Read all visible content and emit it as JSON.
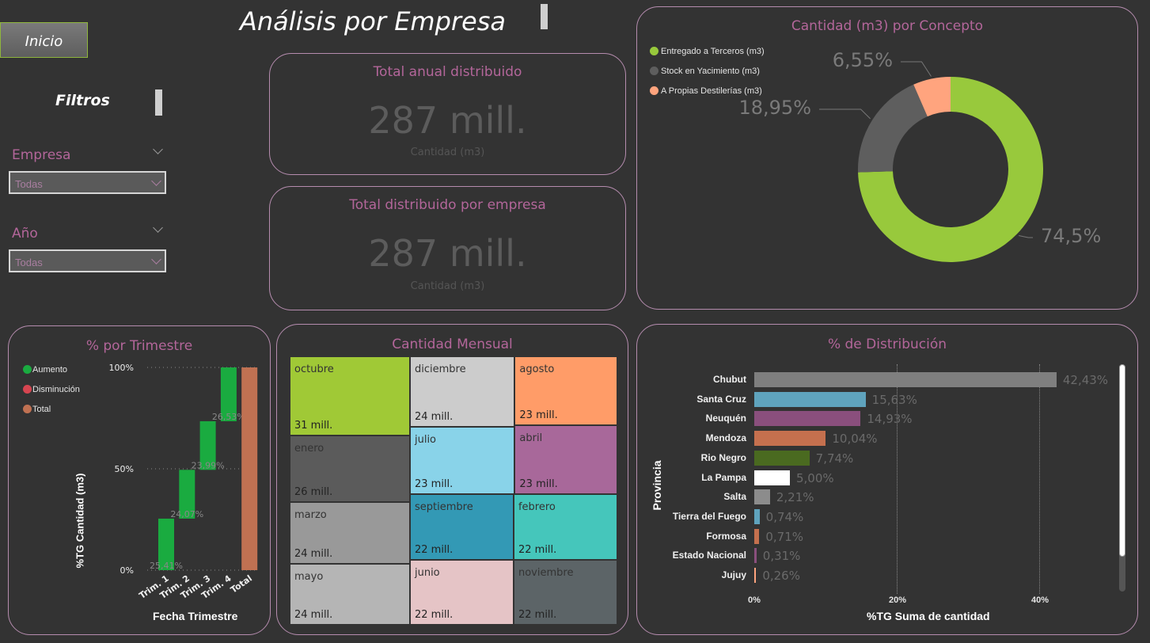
{
  "header": {
    "title": "Análisis por Empresa",
    "inicio_label": "Inicio",
    "filters_label": "Filtros"
  },
  "filters": {
    "empresa": {
      "label": "Empresa",
      "value": "Todas"
    },
    "anio": {
      "label": "Año",
      "value": "Todas"
    }
  },
  "cards": {
    "total_anual": {
      "title": "Total anual distribuido",
      "value": "287 mill.",
      "sub": "Cantidad (m3)"
    },
    "total_empresa": {
      "title": "Total distribuido por empresa",
      "value": "287 mill.",
      "sub": "Cantidad (m3)"
    }
  },
  "donut_panel": {
    "title": "Cantidad (m3) por Concepto"
  },
  "trimestre_panel": {
    "title": "% por Trimestre",
    "ylabel": "%TG Cantidad (m3)",
    "xlabel": "Fecha Trimestre"
  },
  "mensual_panel": {
    "title": "Cantidad Mensual"
  },
  "distrib_panel": {
    "title": "% de Distribución",
    "ylabel": "Provincia",
    "xlabel": "%TG Suma de cantidad"
  },
  "chart_data": [
    {
      "type": "pie",
      "title": "Cantidad (m3) por Concepto",
      "categories": [
        "Entregado a Terceros (m3)",
        "Stock en Yacimiento (m3)",
        "A Propias Destilerías (m3)"
      ],
      "values": [
        74.5,
        18.95,
        6.55
      ],
      "labels": [
        "74,5%",
        "18,95%",
        "6,55%"
      ],
      "colors": [
        "#98c93c",
        "#5e5e5e",
        "#ffa47e"
      ],
      "legend": "top-left"
    },
    {
      "type": "bar",
      "subtype": "waterfall",
      "title": "% por Trimestre",
      "categories": [
        "Trim. 1",
        "Trim. 2",
        "Trim. 3",
        "Trim. 4",
        "Total"
      ],
      "values": [
        25.41,
        24.07,
        23.99,
        26.53,
        100
      ],
      "labels": [
        "25,41%",
        "24,07%",
        "23,99%",
        "26,53%",
        ""
      ],
      "legend_entries": [
        "Aumento",
        "Disminución",
        "Total"
      ],
      "legend_colors": [
        "#1aab40",
        "#d64550",
        "#c07152"
      ],
      "yticks": [
        "0%",
        "50%",
        "100%"
      ],
      "ylim": [
        0,
        100
      ]
    },
    {
      "type": "heatmap",
      "subtype": "treemap",
      "title": "Cantidad Mensual",
      "items": [
        {
          "name": "octubre",
          "label": "31 mill.",
          "value": 31,
          "color": "#a0c936"
        },
        {
          "name": "enero",
          "label": "26 mill.",
          "value": 26,
          "color": "#5b5b5b"
        },
        {
          "name": "marzo",
          "label": "24 mill.",
          "value": 24,
          "color": "#999999"
        },
        {
          "name": "mayo",
          "label": "24 mill.",
          "value": 24,
          "color": "#b5b5b5"
        },
        {
          "name": "diciembre",
          "label": "24 mill.",
          "value": 24,
          "color": "#cccccc"
        },
        {
          "name": "julio",
          "label": "23 mill.",
          "value": 23,
          "color": "#89d3e9"
        },
        {
          "name": "agosto",
          "label": "23 mill.",
          "value": 23,
          "color": "#ff9c68"
        },
        {
          "name": "abril",
          "label": "23 mill.",
          "value": 23,
          "color": "#a8689a"
        },
        {
          "name": "septiembre",
          "label": "22 mill.",
          "value": 22,
          "color": "#3399b5"
        },
        {
          "name": "junio",
          "label": "22 mill.",
          "value": 22,
          "color": "#e5c4c6"
        },
        {
          "name": "febrero",
          "label": "22 mill.",
          "value": 22,
          "color": "#45c6bb"
        },
        {
          "name": "noviembre",
          "label": "22 mill.",
          "value": 22,
          "color": "#5c6467"
        }
      ]
    },
    {
      "type": "bar",
      "orientation": "horizontal",
      "title": "% de Distribución",
      "categories": [
        "Chubut",
        "Santa Cruz",
        "Neuquén",
        "Mendoza",
        "Rio Negro",
        "La Pampa",
        "Salta",
        "Tierra del Fuego",
        "Formosa",
        "Estado Nacional",
        "Jujuy"
      ],
      "values": [
        42.43,
        15.63,
        14.93,
        10.04,
        7.74,
        5.0,
        2.21,
        0.74,
        0.71,
        0.31,
        0.26
      ],
      "labels": [
        "42,43%",
        "15,63%",
        "14,93%",
        "10,04%",
        "7,74%",
        "5,00%",
        "2,21%",
        "0,74%",
        "0,71%",
        "0,31%",
        "0,26%"
      ],
      "colors": [
        "#7f7f7f",
        "#5fa3bd",
        "#8a4f7d",
        "#c5704e",
        "#4a6a20",
        "#ffffff",
        "#8c8c8c",
        "#5fa3bd",
        "#c5704e",
        "#8a4f7d",
        "#ffa47e"
      ],
      "xticks": [
        "0%",
        "20%",
        "40%"
      ],
      "xlim": [
        0,
        45
      ]
    }
  ]
}
